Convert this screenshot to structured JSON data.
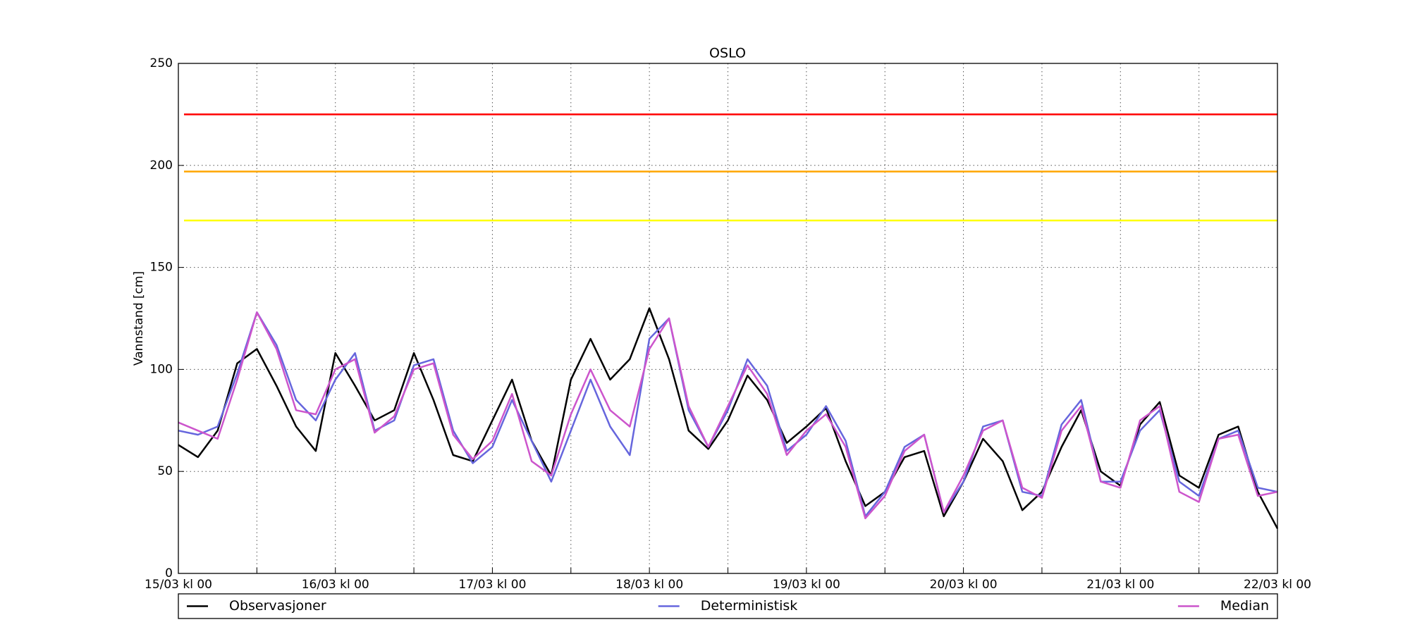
{
  "chart_data": {
    "type": "line",
    "title": "OSLO",
    "y_label": "Vannstand [cm]",
    "x": [
      0,
      3,
      6,
      9,
      12,
      15,
      18,
      21,
      24,
      27,
      30,
      33,
      36,
      39,
      42,
      45,
      48,
      51,
      54,
      57,
      60,
      63,
      66,
      69,
      72,
      75,
      78,
      81,
      84,
      87,
      90,
      93,
      96,
      99,
      102,
      105,
      108,
      111,
      114,
      117,
      120,
      123,
      126,
      129,
      132,
      135,
      138,
      141,
      144,
      147,
      150,
      153,
      156,
      159,
      162,
      165,
      168
    ],
    "series": [
      {
        "name": "Observasjoner",
        "color": "#000000",
        "values": [
          63,
          57,
          70,
          103,
          110,
          92,
          72,
          60,
          108,
          92,
          75,
          80,
          108,
          85,
          58,
          55,
          75,
          95,
          65,
          48,
          95,
          115,
          95,
          105,
          130,
          105,
          70,
          61,
          75,
          97,
          85,
          64,
          72,
          81,
          55,
          33,
          40,
          57,
          60,
          28,
          45,
          66,
          55,
          31,
          40,
          62,
          80,
          50,
          43,
          73,
          84,
          48,
          42,
          68,
          72,
          40,
          22
        ]
      },
      {
        "name": "Deterministisk",
        "color": "#6666dd",
        "values": [
          70,
          68,
          72,
          98,
          128,
          112,
          85,
          75,
          95,
          108,
          70,
          75,
          102,
          105,
          70,
          54,
          62,
          85,
          65,
          45,
          70,
          95,
          72,
          58,
          115,
          125,
          80,
          62,
          80,
          105,
          92,
          60,
          68,
          82,
          65,
          28,
          40,
          62,
          68,
          30,
          45,
          72,
          75,
          40,
          38,
          73,
          85,
          45,
          45,
          70,
          80,
          45,
          38,
          66,
          70,
          42,
          40
        ]
      },
      {
        "name": "Median",
        "color": "#cc55cc",
        "values": [
          74,
          70,
          66,
          95,
          128,
          110,
          80,
          78,
          100,
          105,
          69,
          77,
          100,
          103,
          68,
          56,
          65,
          88,
          55,
          48,
          78,
          100,
          80,
          72,
          110,
          125,
          82,
          62,
          82,
          102,
          88,
          58,
          70,
          78,
          62,
          27,
          38,
          60,
          68,
          30,
          48,
          70,
          75,
          42,
          37,
          70,
          82,
          45,
          42,
          75,
          82,
          40,
          35,
          66,
          68,
          38,
          40
        ]
      }
    ],
    "hlines": [
      {
        "value": 225,
        "color": "#ff0000"
      },
      {
        "value": 197,
        "color": "#ffa500"
      },
      {
        "value": 173,
        "color": "#ffff00"
      }
    ],
    "xlim": [
      0,
      168
    ],
    "xticks": [
      {
        "value": 0,
        "label": "15/03 kl 00"
      },
      {
        "value": 24,
        "label": "16/03 kl 00"
      },
      {
        "value": 48,
        "label": "17/03 kl 00"
      },
      {
        "value": 72,
        "label": "18/03 kl 00"
      },
      {
        "value": 96,
        "label": "19/03 kl 00"
      },
      {
        "value": 120,
        "label": "20/03 kl 00"
      },
      {
        "value": 144,
        "label": "21/03 kl 00"
      },
      {
        "value": 168,
        "label": "22/03 kl 00"
      }
    ],
    "xminorticks": [
      12,
      36,
      60,
      84,
      108,
      132,
      156
    ],
    "ylim": [
      0,
      250
    ],
    "yticks": [
      0,
      50,
      100,
      150,
      200,
      250
    ],
    "grid": true
  }
}
